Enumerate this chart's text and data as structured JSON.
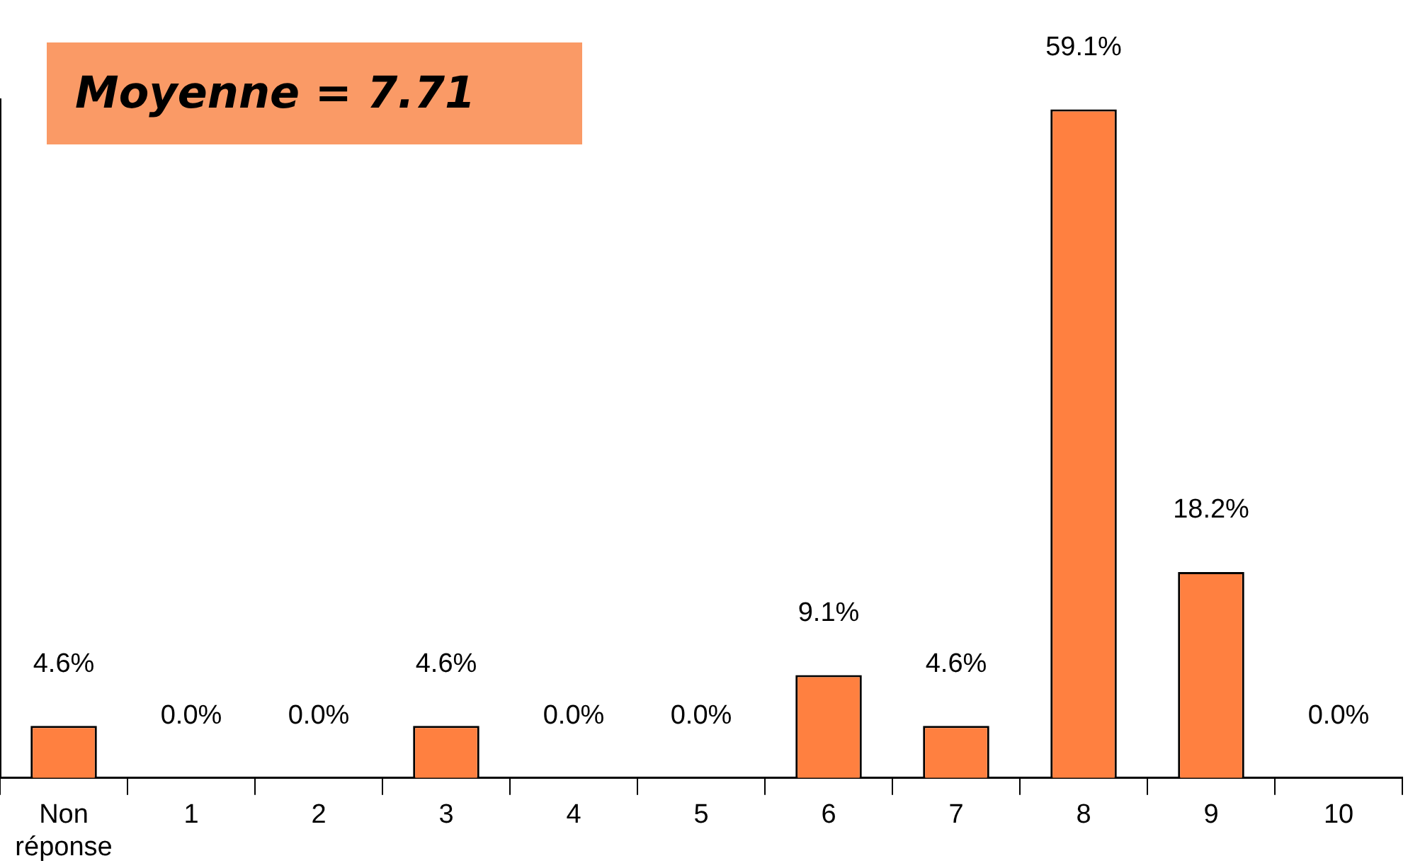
{
  "chart_data": {
    "type": "bar",
    "categories": [
      "Non réponse",
      "1",
      "2",
      "3",
      "4",
      "5",
      "6",
      "7",
      "8",
      "9",
      "10"
    ],
    "values": [
      4.6,
      0.0,
      0.0,
      4.6,
      0.0,
      0.0,
      9.1,
      4.6,
      59.1,
      18.2,
      0.0
    ],
    "value_labels": [
      "4.6%",
      "0.0%",
      "0.0%",
      "4.6%",
      "0.0%",
      "0.0%",
      "9.1%",
      "4.6%",
      "59.1%",
      "18.2%",
      "0.0%"
    ],
    "color": "#ff8040",
    "tick_labels": "x",
    "grid": false,
    "legend": false,
    "annotations": [
      "Moyenne = 7.71"
    ]
  }
}
